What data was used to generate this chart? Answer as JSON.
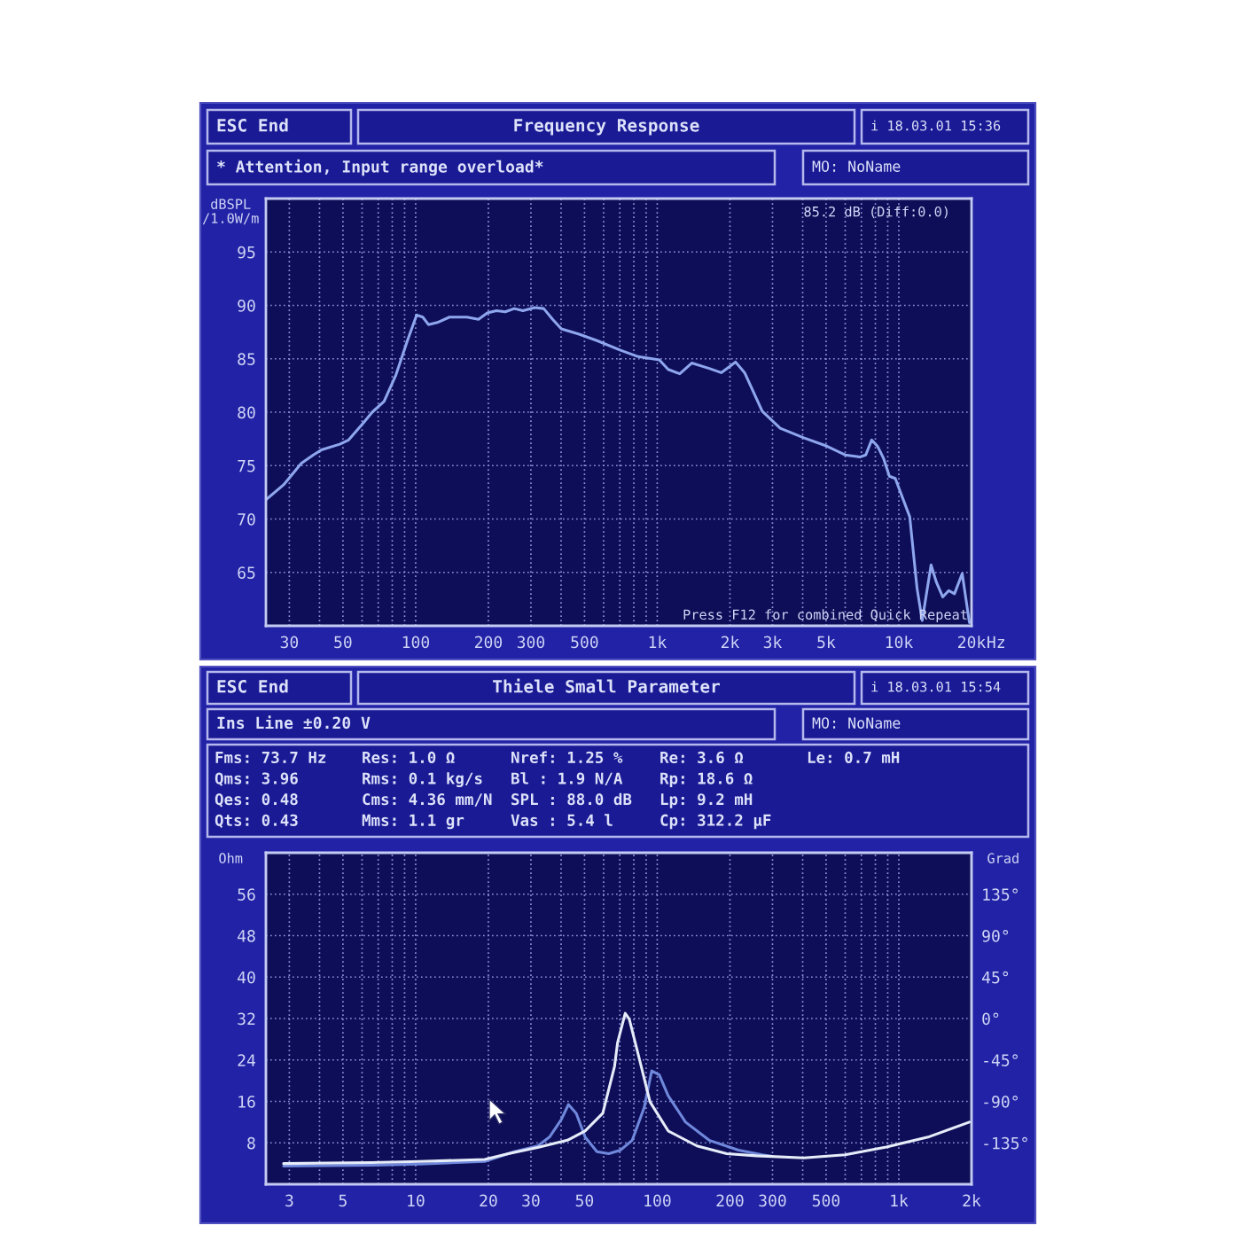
{
  "chart_data": [
    {
      "type": "line",
      "title": "Frequency Response",
      "ylabel": "dBSPL\n/1.0W/m",
      "xlabel": "Hz",
      "annotations": [
        "ESC End",
        "i 18.03.01 15:36",
        "* Attention, Input range overload*",
        "MO: NoName",
        "85.2 dB (Diff:0.0)",
        "Press F12 for combined Quick Repeat"
      ],
      "log": "x",
      "grid": true,
      "xlim": [
        24,
        20000
      ],
      "xticks": [
        30,
        {
          "value": 40,
          "label": null
        },
        50,
        {
          "value": 60,
          "label": null
        },
        {
          "value": 70,
          "label": null
        },
        {
          "value": 80,
          "label": null
        },
        {
          "value": 90,
          "label": null
        },
        100,
        200,
        300,
        {
          "value": 400,
          "label": null
        },
        500,
        {
          "value": 600,
          "label": null
        },
        {
          "value": 700,
          "label": null
        },
        {
          "value": 800,
          "label": null
        },
        {
          "value": 900,
          "label": null
        },
        {
          "value": 1000,
          "label": "1k"
        },
        {
          "value": 2000,
          "label": "2k"
        },
        {
          "value": 3000,
          "label": "3k"
        },
        {
          "value": 4000,
          "label": null
        },
        {
          "value": 5000,
          "label": "5k"
        },
        {
          "value": 6000,
          "label": null
        },
        {
          "value": 7000,
          "label": null
        },
        {
          "value": 8000,
          "label": null
        },
        {
          "value": 9000,
          "label": null
        },
        {
          "value": 10000,
          "label": "10k"
        },
        {
          "value": 20000,
          "label": "20k"
        }
      ],
      "ylim": [
        60,
        100
      ],
      "yticks": [
        65,
        70,
        75,
        80,
        85,
        90,
        95
      ],
      "series": [
        {
          "color": "#8ea6ee",
          "x": [
            24,
            28.4,
            33.6,
            37.7,
            41,
            48.5,
            52.8,
            60.8,
            66.1,
            74,
            82.9,
            92.8,
            101,
            107,
            113,
            123,
            138,
            163,
            182,
            198,
            216,
            235,
            256,
            278,
            311,
            339,
            369,
            401,
            475,
            563,
            705,
            834,
            1020,
            1110,
            1240,
            1390,
            1640,
            1840,
            2000,
            2110,
            2300,
            2720,
            3230,
            4040,
            5060,
            5990,
            6900,
            7300,
            7720,
            8170,
            8640,
            9140,
            9670,
            10200,
            11100,
            11900,
            12500,
            13600,
            14300,
            15200,
            16100,
            17000,
            18300,
            19600
          ],
          "values": [
            71.8,
            73.2,
            75.2,
            76.0,
            76.5,
            77.0,
            77.4,
            79.0,
            80.0,
            81.0,
            83.5,
            86.8,
            89.1,
            88.9,
            88.2,
            88.4,
            88.9,
            88.9,
            88.7,
            89.3,
            89.5,
            89.4,
            89.7,
            89.5,
            89.8,
            89.7,
            88.7,
            87.8,
            87.3,
            86.7,
            85.8,
            85.2,
            84.9,
            84.0,
            83.6,
            84.6,
            84.1,
            83.7,
            84.3,
            84.7,
            83.7,
            80.1,
            78.5,
            77.6,
            76.8,
            76.0,
            75.8,
            76.0,
            77.4,
            76.8,
            75.7,
            74.0,
            73.8,
            72.4,
            70.2,
            63.5,
            60.5,
            65.7,
            64.1,
            62.7,
            63.3,
            63.0,
            64.9,
            60.3
          ]
        }
      ]
    },
    {
      "type": "line",
      "title": "Thiele Small Parameter",
      "ylabel": "Ohm",
      "y2label": "Grad",
      "annotations": [
        "ESC End",
        "i 18.03.01 15:54",
        "Ins Line ±0.20 V",
        "MO: NoName",
        "Fms: 73.7 Hz",
        "Qms: 3.96",
        "Qes: 0.48",
        "Qts: 0.43",
        "Res: 1.0 Ω",
        "Rms: 0.1 kg/s",
        "Cms: 4.36 mm/N",
        "Mms: 1.1 gr",
        "Nref: 1.25 %",
        "Bl : 1.9 N/A",
        "SPL : 88.0 dB",
        "Vas : 5.4 l",
        "Re: 3.6 Ω",
        "Rp: 18.6 Ω",
        "Lp: 9.2 mH",
        "Cp: 312.2 µF",
        "Le: 0.7 mH"
      ],
      "log": "x",
      "grid": true,
      "xlim": [
        2.4,
        2000
      ],
      "xticks": [
        3,
        {
          "value": 4,
          "label": null
        },
        5,
        {
          "value": 6,
          "label": null
        },
        {
          "value": 7,
          "label": null
        },
        {
          "value": 8,
          "label": null
        },
        {
          "value": 9,
          "label": null
        },
        10,
        20,
        30,
        {
          "value": 40,
          "label": null
        },
        50,
        {
          "value": 60,
          "label": null
        },
        {
          "value": 70,
          "label": null
        },
        {
          "value": 80,
          "label": null
        },
        {
          "value": 90,
          "label": null
        },
        100,
        200,
        300,
        {
          "value": 400,
          "label": null
        },
        500,
        {
          "value": 600,
          "label": null
        },
        {
          "value": 700,
          "label": null
        },
        {
          "value": 800,
          "label": null
        },
        {
          "value": 900,
          "label": null
        },
        {
          "value": 1000,
          "label": "1k"
        },
        {
          "value": 2000,
          "label": "2k"
        }
      ],
      "ylim": [
        0,
        64
      ],
      "yticks": [
        8,
        16,
        24,
        32,
        40,
        48,
        56
      ],
      "y2lim": [
        -180,
        180
      ],
      "y2ticks": [
        {
          "value": -135,
          "label": "-135°"
        },
        {
          "value": -90,
          "label": "-90°"
        },
        {
          "value": -45,
          "label": "-45°"
        },
        {
          "value": 0,
          "label": "0°"
        },
        {
          "value": 45,
          "label": "45°"
        },
        {
          "value": 90,
          "label": "90°"
        },
        {
          "value": 135,
          "label": "135°"
        }
      ],
      "series": [
        {
          "color": "#7088dc",
          "x": [
            2.84,
            6.6,
            10.4,
            19.3,
            25.6,
            32,
            35.8,
            40.1,
            42.9,
            46.2,
            50.3,
            56.3,
            63,
            70.5,
            78.8,
            88.3,
            94.9,
            102,
            111,
            131,
            164,
            217,
            272,
            300
          ],
          "values": [
            3.5,
            3.7,
            3.9,
            4.4,
            6.3,
            7.4,
            9.1,
            12.5,
            15.4,
            13.7,
            9.1,
            6.3,
            5.9,
            6.6,
            8.5,
            14.8,
            21.9,
            21.1,
            17.1,
            12.0,
            8.5,
            6.6,
            5.7,
            5.4
          ]
        },
        {
          "color": "#e6ecf8",
          "x": [
            2.84,
            6.6,
            10.4,
            19.3,
            24.2,
            32,
            42.5,
            50.3,
            59.5,
            66.6,
            68.5,
            73.7,
            76.6,
            83.4,
            93.4,
            111,
            146,
            194,
            257,
            404,
            599,
            888,
            1320,
            1960
          ],
          "values": [
            4.0,
            4.2,
            4.4,
            4.8,
            5.9,
            7.1,
            8.5,
            10.3,
            13.7,
            22.8,
            27.3,
            33.0,
            31.9,
            25.1,
            15.9,
            10.3,
            7.4,
            5.9,
            5.5,
            5.1,
            5.7,
            7.2,
            9.1,
            12.0
          ]
        }
      ]
    }
  ]
}
